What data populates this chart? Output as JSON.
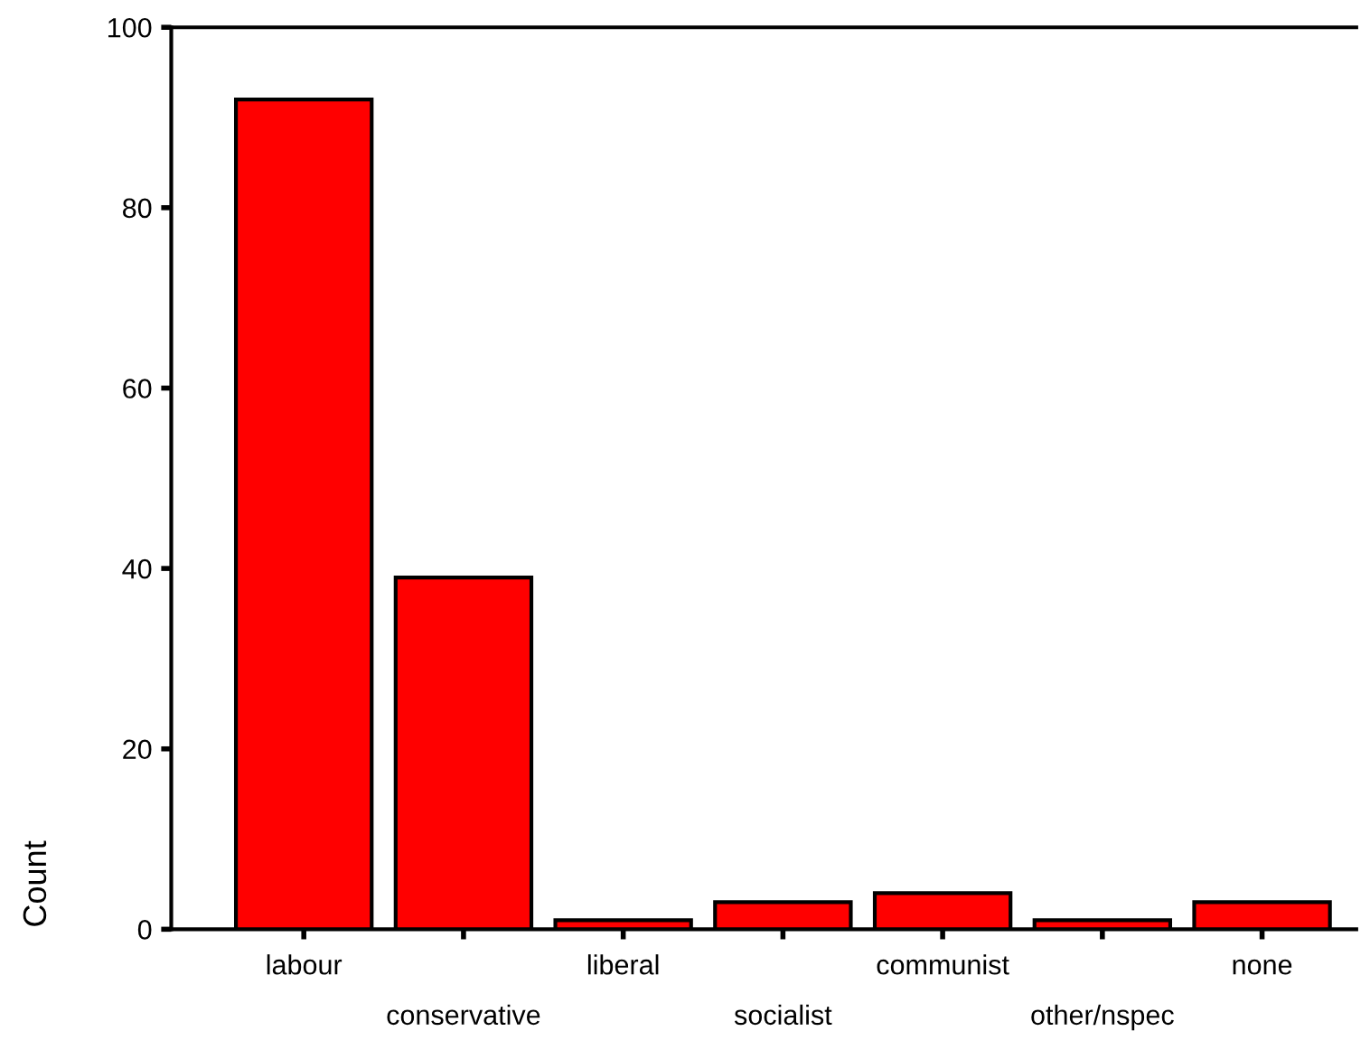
{
  "chart_data": {
    "type": "bar",
    "ylabel": "Count",
    "categories": [
      "labour",
      "conservative",
      "liberal",
      "socialist",
      "communist",
      "other/nspec",
      "none"
    ],
    "values": [
      92,
      39,
      1,
      3,
      4,
      1,
      3
    ],
    "color": "#ff0000",
    "ylim": [
      0,
      100
    ],
    "yticks": [
      0,
      20,
      40,
      60,
      80,
      100
    ],
    "grid": false
  }
}
